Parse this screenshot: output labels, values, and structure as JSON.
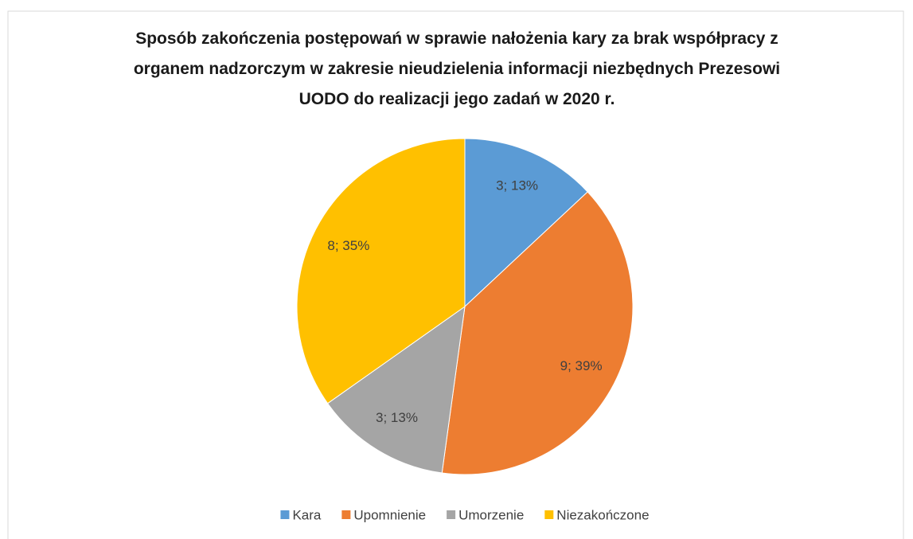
{
  "chart_data": {
    "type": "pie",
    "title": "Sposób zakończenia postępowań w sprawie nałożenia kary za brak współpracy z organem nadzorczym w zakresie nieudzielenia informacji niezbędnych Prezesowi UODO do realizacji jego zadań w 2020 r.",
    "categories": [
      "Kara",
      "Upomnienie",
      "Umorzenie",
      "Niezakończone"
    ],
    "values": [
      3,
      9,
      3,
      8
    ],
    "value_labels": [
      "3; 13%",
      "9; 39%",
      "3; 13%",
      "8; 35%"
    ],
    "colors": [
      "#5b9bd5",
      "#ed7d31",
      "#a5a5a5",
      "#ffc000"
    ],
    "legend": "bottom"
  }
}
